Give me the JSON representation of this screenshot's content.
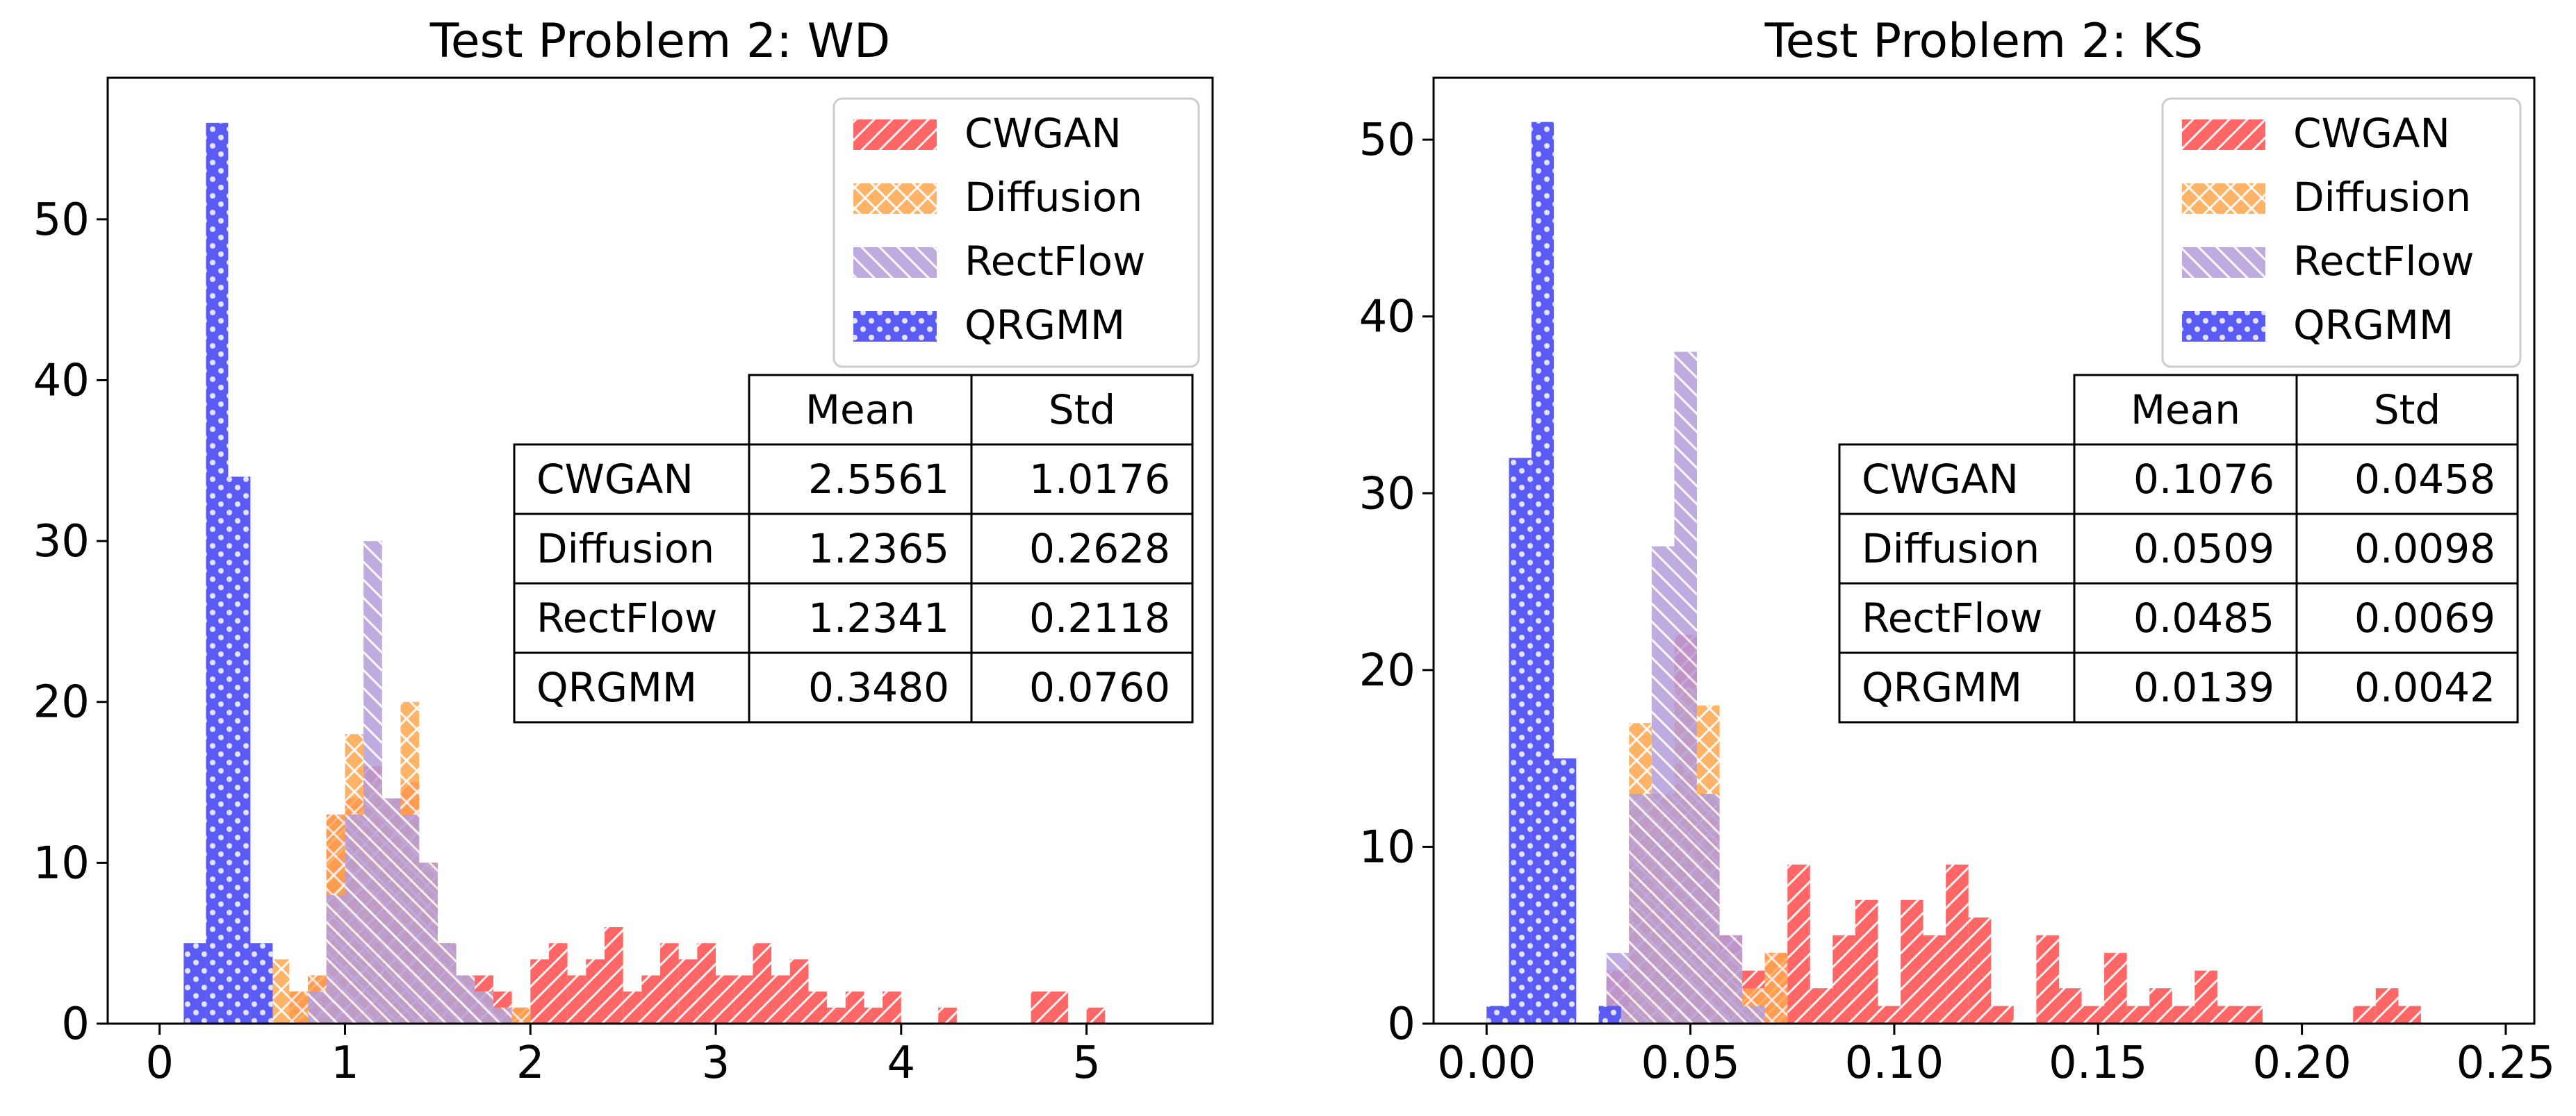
{
  "charts": [
    {
      "type": "histogram",
      "title": "Test Problem 2: WD",
      "xlabel": "",
      "ylabel": "",
      "xlim": [
        -0.28,
        5.68
      ],
      "ylim": [
        0,
        58.8
      ],
      "xticks": [
        0,
        1,
        2,
        3,
        4,
        5
      ],
      "xtick_labels": [
        "0",
        "1",
        "2",
        "3",
        "4",
        "5"
      ],
      "yticks": [
        0,
        10,
        20,
        30,
        40,
        50
      ],
      "ytick_labels": [
        "0",
        "10",
        "20",
        "30",
        "40",
        "50"
      ],
      "legend": [
        "CWGAN",
        "Diffusion",
        "RectFlow",
        "QRGMM"
      ],
      "table": {
        "columns": [
          "Mean",
          "Std"
        ],
        "rows": [
          {
            "label": "CWGAN",
            "mean": "2.5561",
            "std": "1.0176"
          },
          {
            "label": "Diffusion",
            "mean": "1.2365",
            "std": "0.2628"
          },
          {
            "label": "RectFlow",
            "mean": "1.2341",
            "std": "0.2118"
          },
          {
            "label": "QRGMM",
            "mean": "0.3480",
            "std": "0.0760"
          }
        ]
      },
      "series": [
        {
          "name": "CWGAN",
          "color": "#ff6666",
          "alpha": 1.0,
          "hatch": "backslash",
          "bin_width": 0.1,
          "edges": [
            0.7,
            0.8,
            0.9,
            1.0,
            1.1,
            1.2,
            1.3,
            1.4,
            1.5,
            1.6,
            1.7,
            1.8,
            1.9,
            2.0,
            2.1,
            2.2,
            2.3,
            2.4,
            2.5,
            2.6,
            2.7,
            2.8,
            2.9,
            3.0,
            3.1,
            3.2,
            3.3,
            3.4,
            3.5,
            3.6,
            3.7,
            3.8,
            3.9,
            4.0,
            4.1,
            4.2,
            4.3,
            4.4,
            4.5,
            4.6,
            4.7,
            4.8,
            4.9,
            5.0,
            5.1
          ],
          "values": [
            2,
            3,
            13,
            14,
            16,
            14,
            15,
            10,
            5,
            3,
            3,
            2,
            1,
            4,
            5,
            3,
            4,
            6,
            2,
            3,
            5,
            4,
            5,
            3,
            3,
            5,
            3,
            4,
            2,
            1,
            2,
            1,
            2,
            0,
            0,
            1,
            0,
            0,
            0,
            0,
            2,
            2,
            0,
            1,
            0
          ]
        },
        {
          "name": "Diffusion",
          "color": "#ffa64d",
          "alpha": 0.85,
          "hatch": "cross",
          "bin_width": 0.1,
          "edges": [
            0.6,
            0.7,
            0.8,
            0.9,
            1.0,
            1.1,
            1.2,
            1.3,
            1.4,
            1.5,
            1.6,
            1.7,
            1.8,
            1.9
          ],
          "values": [
            4,
            2,
            3,
            13,
            18,
            15,
            14,
            20,
            10,
            5,
            3,
            2,
            1,
            1
          ]
        },
        {
          "name": "RectFlow",
          "color": "#b39ddb",
          "alpha": 0.85,
          "hatch": "slash",
          "bin_width": 0.1,
          "edges": [
            0.8,
            0.9,
            1.0,
            1.1,
            1.2,
            1.3,
            1.4,
            1.5,
            1.6,
            1.7,
            1.8
          ],
          "values": [
            2,
            8,
            13,
            30,
            14,
            13,
            10,
            5,
            3,
            2,
            1
          ]
        },
        {
          "name": "QRGMM",
          "color": "#5b5bf5",
          "alpha": 1.0,
          "hatch": "dots",
          "bin_width": 0.12,
          "edges": [
            0.13,
            0.25,
            0.37,
            0.49
          ],
          "values": [
            5,
            56,
            34,
            5
          ]
        }
      ]
    },
    {
      "type": "histogram",
      "title": "Test Problem 2: KS",
      "xlabel": "",
      "ylabel": "",
      "xlim": [
        -0.013,
        0.257
      ],
      "ylim": [
        0,
        53.5
      ],
      "xticks": [
        0.0,
        0.05,
        0.1,
        0.15,
        0.2,
        0.25
      ],
      "xtick_labels": [
        "0.00",
        "0.05",
        "0.10",
        "0.15",
        "0.20",
        "0.25"
      ],
      "yticks": [
        0,
        10,
        20,
        30,
        40,
        50
      ],
      "ytick_labels": [
        "0",
        "10",
        "20",
        "30",
        "40",
        "50"
      ],
      "legend": [
        "CWGAN",
        "Diffusion",
        "RectFlow",
        "QRGMM"
      ],
      "table": {
        "columns": [
          "Mean",
          "Std"
        ],
        "rows": [
          {
            "label": "CWGAN",
            "mean": "0.1076",
            "std": "0.0458"
          },
          {
            "label": "Diffusion",
            "mean": "0.0509",
            "std": "0.0098"
          },
          {
            "label": "RectFlow",
            "mean": "0.0485",
            "std": "0.0069"
          },
          {
            "label": "QRGMM",
            "mean": "0.0139",
            "std": "0.0042"
          }
        ]
      },
      "series": [
        {
          "name": "CWGAN",
          "color": "#ff6666",
          "alpha": 1.0,
          "hatch": "backslash",
          "bin_width": 0.00555,
          "edges": [
            0.0294,
            0.03495,
            0.0405,
            0.04605,
            0.0516,
            0.05715,
            0.0627,
            0.06825,
            0.0738,
            0.07935,
            0.0849,
            0.09045,
            0.096,
            0.10155,
            0.1071,
            0.11265,
            0.1182,
            0.12375,
            0.1293,
            0.13485,
            0.1404,
            0.14595,
            0.1515,
            0.15705,
            0.1626,
            0.16815,
            0.1737,
            0.17925,
            0.1848,
            0.19035,
            0.1959,
            0.20145,
            0.207,
            0.21255,
            0.2181,
            0.22365,
            0.2292
          ],
          "values": [
            3,
            12,
            13,
            22,
            13,
            5,
            3,
            4,
            9,
            2,
            5,
            7,
            1,
            7,
            5,
            9,
            6,
            1,
            0,
            5,
            2,
            1,
            4,
            1,
            2,
            1,
            3,
            1,
            1,
            0,
            0,
            0,
            0,
            1,
            2,
            1,
            0
          ]
        },
        {
          "name": "Diffusion",
          "color": "#ffa64d",
          "alpha": 0.85,
          "hatch": "cross",
          "bin_width": 0.00555,
          "edges": [
            0.0294,
            0.03495,
            0.0405,
            0.04605,
            0.0516,
            0.05715,
            0.0627,
            0.06825
          ],
          "values": [
            1,
            17,
            13,
            19,
            18,
            4,
            2,
            4
          ]
        },
        {
          "name": "RectFlow",
          "color": "#b39ddb",
          "alpha": 0.85,
          "hatch": "slash",
          "bin_width": 0.00555,
          "edges": [
            0.0294,
            0.03495,
            0.0405,
            0.04605,
            0.0516,
            0.05715,
            0.0627
          ],
          "values": [
            4,
            13,
            27,
            38,
            13,
            5,
            1
          ]
        },
        {
          "name": "QRGMM",
          "color": "#5b5bf5",
          "alpha": 1.0,
          "hatch": "dots",
          "bin_width": 0.0055,
          "edges": [
            0.0,
            0.0055,
            0.011,
            0.0165,
            0.022,
            0.0275
          ],
          "values": [
            1,
            32,
            51,
            15,
            0,
            1
          ]
        }
      ]
    }
  ],
  "colors": {
    "cwgan": "#ff6666",
    "diffusion": "#ffa64d",
    "rectflow": "#b39ddb",
    "qrgmm": "#5b5bf5"
  }
}
